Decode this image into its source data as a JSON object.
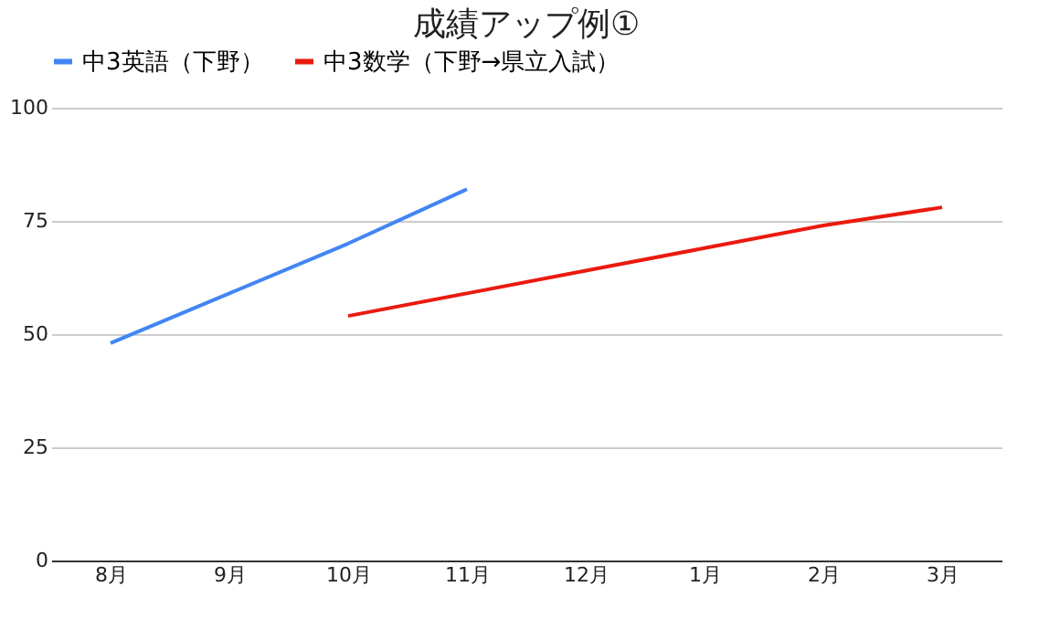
{
  "chart_data": {
    "type": "line",
    "title": "成績アップ例①",
    "categories": [
      "8月",
      "9月",
      "10月",
      "11月",
      "12月",
      "1月",
      "2月",
      "3月"
    ],
    "series": [
      {
        "name": "中3英語（下野）",
        "color": "#4285f4",
        "values": [
          48,
          59,
          70,
          82,
          null,
          null,
          null,
          null
        ]
      },
      {
        "name": "中3数学（下野→県立入試）",
        "color": "#ea1a0e",
        "values": [
          null,
          null,
          54,
          59,
          64,
          69,
          74,
          78
        ]
      }
    ],
    "ylim": [
      0,
      100
    ],
    "yticks": [
      0,
      25,
      50,
      75,
      100
    ],
    "grid": "y",
    "legend": "top",
    "line_style": "solid",
    "marker": "none"
  }
}
